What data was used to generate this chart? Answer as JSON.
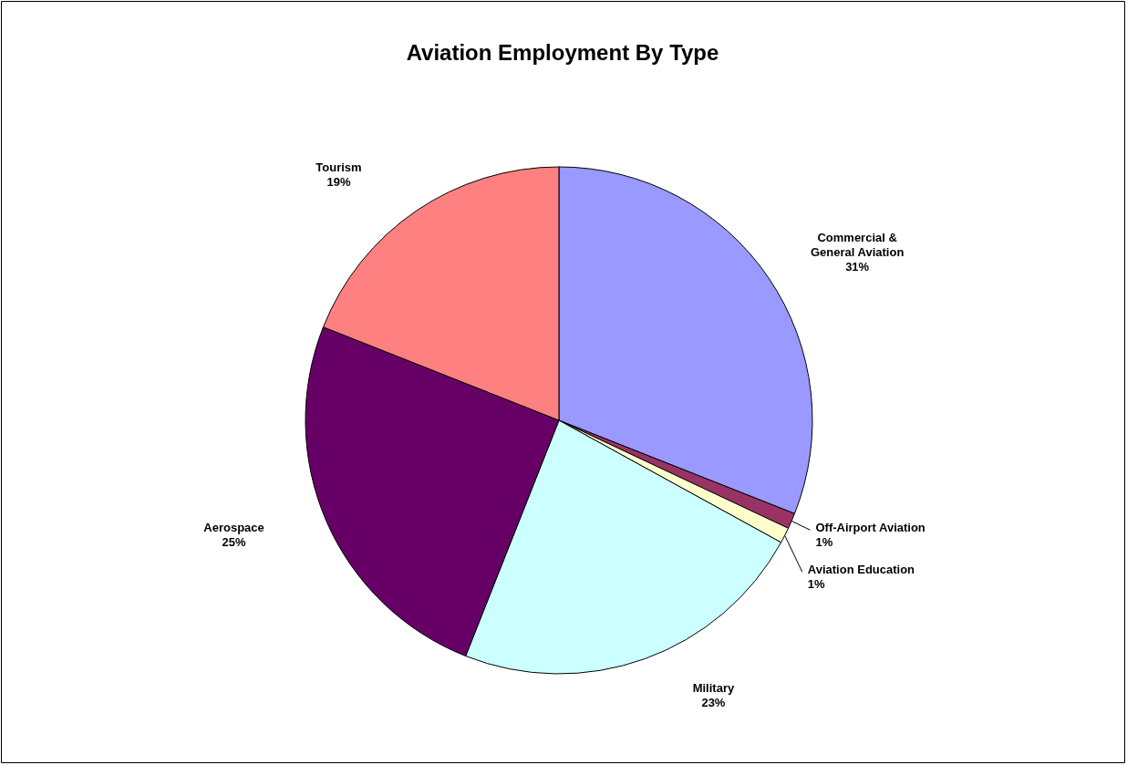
{
  "chart_data": {
    "type": "pie",
    "title": "Aviation Employment By Type",
    "categories": [
      "Commercial & General Aviation",
      "Off-Airport Aviation",
      "Aviation Education",
      "Military",
      "Aerospace",
      "Tourism"
    ],
    "values": [
      31,
      1,
      1,
      23,
      25,
      19
    ],
    "value_labels": [
      "31%",
      "1%",
      "1%",
      "23%",
      "25%",
      "19%"
    ],
    "colors": [
      "#9999ff",
      "#993366",
      "#ffffcc",
      "#ccffff",
      "#660066",
      "#ff8080"
    ]
  }
}
